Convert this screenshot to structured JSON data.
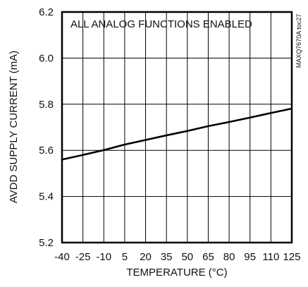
{
  "chart_data": {
    "type": "line",
    "annotation": "ALL ANALOG FUNCTIONS ENABLED",
    "side_label": "MAXQ7670A toc27",
    "xlabel": "TEMPERATURE (°C)",
    "ylabel": "AVDD SUPPLY CURRENT (mA)",
    "xlim": [
      -40,
      125
    ],
    "ylim": [
      5.2,
      6.2
    ],
    "x_ticks": [
      -40,
      -25,
      -10,
      5,
      20,
      35,
      50,
      65,
      80,
      95,
      110,
      125
    ],
    "x_tick_labels": [
      "-40",
      "-25",
      "-10",
      "5",
      "20",
      "35",
      "50",
      "65",
      "80",
      "95",
      "110",
      "125"
    ],
    "y_ticks": [
      5.2,
      5.4,
      5.6,
      5.8,
      6.0,
      6.2
    ],
    "y_tick_labels": [
      "5.2",
      "5.4",
      "5.6",
      "5.8",
      "6.0",
      "6.2"
    ],
    "grid": true,
    "series": [
      {
        "x": [
          -40,
          -25,
          -10,
          5,
          20,
          35,
          50,
          65,
          80,
          95,
          110,
          125
        ],
        "y": [
          5.56,
          5.58,
          5.601,
          5.625,
          5.645,
          5.665,
          5.684,
          5.705,
          5.723,
          5.742,
          5.762,
          5.781
        ]
      }
    ]
  }
}
